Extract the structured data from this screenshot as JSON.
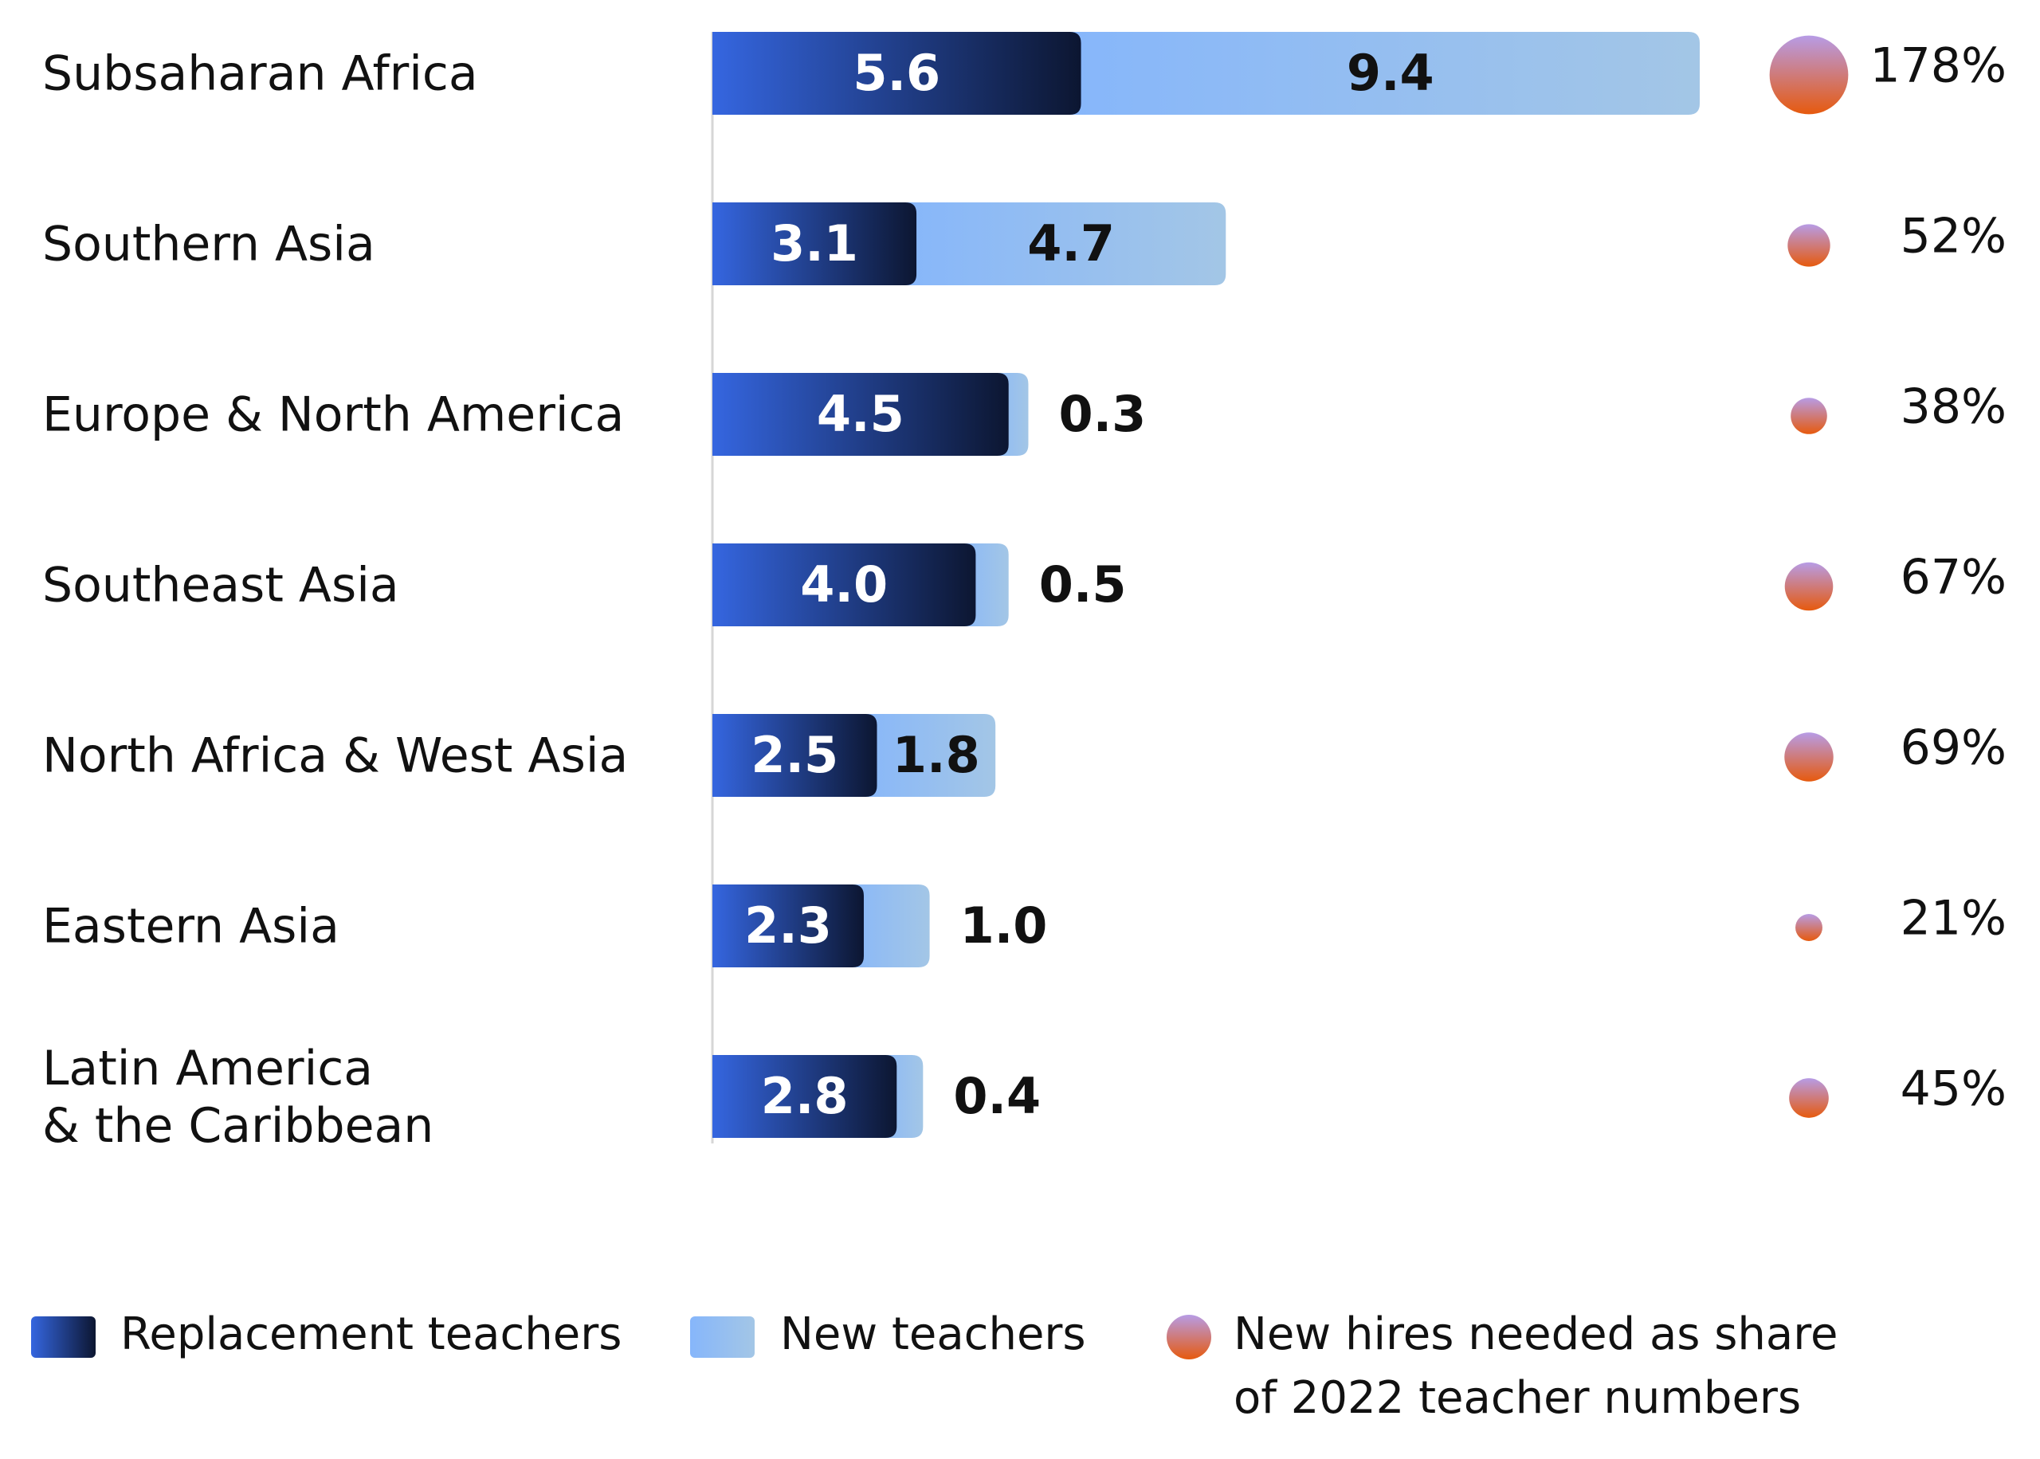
{
  "chart_data": {
    "type": "bar-stacked-horizontal",
    "categories": [
      "Subsaharan Africa",
      "Southern Asia",
      "Europe & North America",
      "Southeast Asia",
      "North Africa & West Asia",
      "Eastern Asia",
      "Latin America\n& the Caribbean"
    ],
    "series": [
      {
        "name": "Replacement teachers",
        "color": "#3566e0",
        "values": [
          5.6,
          3.1,
          4.5,
          4.0,
          2.5,
          2.3,
          2.8
        ],
        "value_labels": [
          "5.6",
          "3.1",
          "4.5",
          "4.0",
          "2.5",
          "2.3",
          "2.8"
        ]
      },
      {
        "name": "New teachers",
        "color": "#86b6fb",
        "values": [
          9.4,
          4.7,
          0.3,
          0.5,
          1.8,
          1.0,
          0.4
        ],
        "value_labels": [
          "9.4",
          "4.7",
          "0.3",
          "0.5",
          "1.8",
          "1.0",
          "0.4"
        ]
      }
    ],
    "share": {
      "name": "New hires needed as share\nof 2022 teacher numbers",
      "color": "#e65a0e",
      "values": [
        178,
        52,
        38,
        67,
        69,
        21,
        45
      ],
      "value_labels": [
        "178%",
        "52%",
        "38%",
        "67%",
        "69%",
        "21%",
        "45%"
      ]
    }
  }
}
